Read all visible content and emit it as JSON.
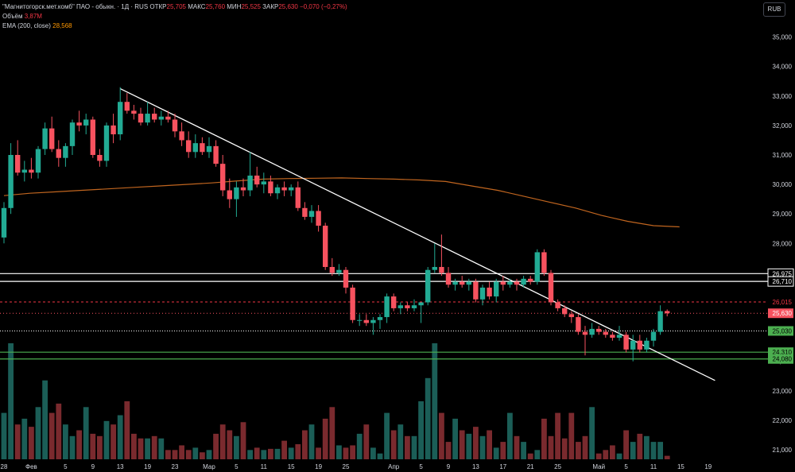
{
  "legend": {
    "symbol": "\"Магнитогорск.мет.комб\" ПАО - обыкн. · 1Д · RUS",
    "open_label": "ОТКР",
    "open": "25,705",
    "high_label": "МАКС",
    "high": "25,760",
    "low_label": "МИН",
    "low": "25,525",
    "close_label": "ЗАКР",
    "close": "25,630",
    "change": "−0,070 (−0,27%)",
    "volume_label": "Объём",
    "volume": "3,87M",
    "ema_label": "EMA (200, close)",
    "ema": "28,568"
  },
  "currency": "RUB",
  "chart_data": {
    "type": "candlestick",
    "y_range": [
      20.8,
      35.5
    ],
    "y_ticks": [
      21,
      22,
      23,
      24,
      25,
      26,
      27,
      28,
      29,
      30,
      31,
      32,
      33,
      34,
      35
    ],
    "y_tick_labels": [
      "21,000",
      "22,000",
      "23,000",
      "24,000",
      "25,000",
      "26,000",
      "27,000",
      "28,000",
      "29,000",
      "30,000",
      "31,000",
      "32,000",
      "33,000",
      "34,000",
      "35,000"
    ],
    "x_labels": [
      {
        "label": "28",
        "at": 0
      },
      {
        "label": "Фев",
        "at": 4
      },
      {
        "label": "5",
        "at": 9
      },
      {
        "label": "9",
        "at": 13
      },
      {
        "label": "13",
        "at": 17
      },
      {
        "label": "19",
        "at": 21
      },
      {
        "label": "23",
        "at": 25
      },
      {
        "label": "Мар",
        "at": 30
      },
      {
        "label": "5",
        "at": 34
      },
      {
        "label": "11",
        "at": 38
      },
      {
        "label": "15",
        "at": 42
      },
      {
        "label": "19",
        "at": 46
      },
      {
        "label": "25",
        "at": 50
      },
      {
        "label": "Апр",
        "at": 57
      },
      {
        "label": "5",
        "at": 61
      },
      {
        "label": "9",
        "at": 65
      },
      {
        "label": "13",
        "at": 69
      },
      {
        "label": "17",
        "at": 73
      },
      {
        "label": "21",
        "at": 77
      },
      {
        "label": "25",
        "at": 81
      },
      {
        "label": "Май",
        "at": 87
      },
      {
        "label": "5",
        "at": 91
      },
      {
        "label": "11",
        "at": 95
      },
      {
        "label": "15",
        "at": 99
      },
      {
        "label": "19",
        "at": 103
      }
    ],
    "candles": [
      {
        "o": 28.2,
        "h": 29.4,
        "l": 28.0,
        "c": 29.2
      },
      {
        "o": 29.2,
        "h": 31.4,
        "l": 29.0,
        "c": 31.0
      },
      {
        "o": 31.0,
        "h": 31.5,
        "l": 30.3,
        "c": 30.4
      },
      {
        "o": 30.4,
        "h": 30.8,
        "l": 30.1,
        "c": 30.5
      },
      {
        "o": 30.5,
        "h": 30.9,
        "l": 30.2,
        "c": 30.4
      },
      {
        "o": 30.4,
        "h": 31.3,
        "l": 30.2,
        "c": 31.2
      },
      {
        "o": 31.2,
        "h": 32.1,
        "l": 31.0,
        "c": 31.9
      },
      {
        "o": 31.9,
        "h": 32.3,
        "l": 31.1,
        "c": 31.2
      },
      {
        "o": 31.2,
        "h": 31.5,
        "l": 30.6,
        "c": 30.9
      },
      {
        "o": 30.9,
        "h": 31.4,
        "l": 30.6,
        "c": 31.3
      },
      {
        "o": 31.3,
        "h": 32.2,
        "l": 31.0,
        "c": 32.1
      },
      {
        "o": 32.1,
        "h": 32.5,
        "l": 31.8,
        "c": 32.0
      },
      {
        "o": 32.0,
        "h": 32.4,
        "l": 31.7,
        "c": 32.2
      },
      {
        "o": 32.2,
        "h": 32.3,
        "l": 30.9,
        "c": 31.0
      },
      {
        "o": 31.0,
        "h": 31.2,
        "l": 30.6,
        "c": 30.8
      },
      {
        "o": 30.8,
        "h": 32.1,
        "l": 30.6,
        "c": 32.0
      },
      {
        "o": 32.0,
        "h": 32.4,
        "l": 31.4,
        "c": 31.7
      },
      {
        "o": 31.7,
        "h": 33.3,
        "l": 31.5,
        "c": 32.8
      },
      {
        "o": 32.8,
        "h": 33.1,
        "l": 32.4,
        "c": 32.5
      },
      {
        "o": 32.5,
        "h": 32.7,
        "l": 32.2,
        "c": 32.4
      },
      {
        "o": 32.4,
        "h": 32.6,
        "l": 32.0,
        "c": 32.1
      },
      {
        "o": 32.1,
        "h": 32.8,
        "l": 32.0,
        "c": 32.4
      },
      {
        "o": 32.4,
        "h": 32.6,
        "l": 32.1,
        "c": 32.2
      },
      {
        "o": 32.2,
        "h": 32.5,
        "l": 32.0,
        "c": 32.3
      },
      {
        "o": 32.3,
        "h": 32.5,
        "l": 32.1,
        "c": 32.2
      },
      {
        "o": 32.2,
        "h": 32.4,
        "l": 31.6,
        "c": 31.8
      },
      {
        "o": 31.8,
        "h": 32.1,
        "l": 31.3,
        "c": 31.5
      },
      {
        "o": 31.5,
        "h": 31.8,
        "l": 30.9,
        "c": 31.1
      },
      {
        "o": 31.1,
        "h": 31.7,
        "l": 30.9,
        "c": 31.4
      },
      {
        "o": 31.4,
        "h": 31.6,
        "l": 31.0,
        "c": 31.1
      },
      {
        "o": 31.1,
        "h": 31.6,
        "l": 30.9,
        "c": 31.3
      },
      {
        "o": 31.3,
        "h": 31.5,
        "l": 30.6,
        "c": 30.7
      },
      {
        "o": 30.7,
        "h": 31.0,
        "l": 29.6,
        "c": 29.8
      },
      {
        "o": 29.8,
        "h": 30.2,
        "l": 29.2,
        "c": 29.5
      },
      {
        "o": 29.5,
        "h": 30.1,
        "l": 28.9,
        "c": 29.9
      },
      {
        "o": 29.9,
        "h": 30.2,
        "l": 29.6,
        "c": 29.8
      },
      {
        "o": 29.8,
        "h": 31.1,
        "l": 29.6,
        "c": 30.3
      },
      {
        "o": 30.3,
        "h": 30.6,
        "l": 29.9,
        "c": 30.0
      },
      {
        "o": 30.0,
        "h": 30.4,
        "l": 29.7,
        "c": 30.1
      },
      {
        "o": 30.1,
        "h": 30.3,
        "l": 29.6,
        "c": 29.7
      },
      {
        "o": 29.7,
        "h": 30.0,
        "l": 29.5,
        "c": 29.9
      },
      {
        "o": 29.9,
        "h": 30.1,
        "l": 29.6,
        "c": 29.8
      },
      {
        "o": 29.8,
        "h": 30.0,
        "l": 29.6,
        "c": 29.9
      },
      {
        "o": 29.9,
        "h": 30.1,
        "l": 29.1,
        "c": 29.2
      },
      {
        "o": 29.2,
        "h": 29.4,
        "l": 28.8,
        "c": 28.9
      },
      {
        "o": 28.9,
        "h": 29.3,
        "l": 28.7,
        "c": 29.1
      },
      {
        "o": 29.1,
        "h": 29.3,
        "l": 28.4,
        "c": 28.6
      },
      {
        "o": 28.6,
        "h": 28.7,
        "l": 27.1,
        "c": 27.2
      },
      {
        "o": 27.2,
        "h": 27.5,
        "l": 26.9,
        "c": 27.0
      },
      {
        "o": 27.0,
        "h": 27.3,
        "l": 26.9,
        "c": 27.1
      },
      {
        "o": 27.1,
        "h": 27.2,
        "l": 26.3,
        "c": 26.5
      },
      {
        "o": 26.5,
        "h": 26.6,
        "l": 25.3,
        "c": 25.4
      },
      {
        "o": 25.4,
        "h": 25.6,
        "l": 25.2,
        "c": 25.4
      },
      {
        "o": 25.4,
        "h": 25.6,
        "l": 25.2,
        "c": 25.3
      },
      {
        "o": 25.3,
        "h": 25.5,
        "l": 24.9,
        "c": 25.4
      },
      {
        "o": 25.4,
        "h": 25.6,
        "l": 25.1,
        "c": 25.5
      },
      {
        "o": 25.5,
        "h": 26.3,
        "l": 25.3,
        "c": 26.2
      },
      {
        "o": 26.2,
        "h": 26.3,
        "l": 25.7,
        "c": 25.8
      },
      {
        "o": 25.8,
        "h": 26.0,
        "l": 25.6,
        "c": 25.9
      },
      {
        "o": 25.9,
        "h": 26.0,
        "l": 25.7,
        "c": 25.8
      },
      {
        "o": 25.8,
        "h": 26.1,
        "l": 25.7,
        "c": 25.9
      },
      {
        "o": 25.9,
        "h": 26.0,
        "l": 25.3,
        "c": 26.0
      },
      {
        "o": 26.0,
        "h": 27.2,
        "l": 25.9,
        "c": 27.1
      },
      {
        "o": 27.1,
        "h": 28.0,
        "l": 27.0,
        "c": 27.2
      },
      {
        "o": 27.2,
        "h": 28.3,
        "l": 26.9,
        "c": 27.0
      },
      {
        "o": 27.0,
        "h": 27.2,
        "l": 26.5,
        "c": 26.6
      },
      {
        "o": 26.6,
        "h": 26.8,
        "l": 26.4,
        "c": 26.7
      },
      {
        "o": 26.7,
        "h": 26.9,
        "l": 26.5,
        "c": 26.6
      },
      {
        "o": 26.6,
        "h": 26.8,
        "l": 26.4,
        "c": 26.7
      },
      {
        "o": 26.7,
        "h": 26.8,
        "l": 26.0,
        "c": 26.1
      },
      {
        "o": 26.1,
        "h": 26.6,
        "l": 25.9,
        "c": 26.5
      },
      {
        "o": 26.5,
        "h": 26.7,
        "l": 26.1,
        "c": 26.2
      },
      {
        "o": 26.2,
        "h": 26.8,
        "l": 26.0,
        "c": 26.7
      },
      {
        "o": 26.7,
        "h": 26.9,
        "l": 26.4,
        "c": 26.6
      },
      {
        "o": 26.6,
        "h": 26.8,
        "l": 26.5,
        "c": 26.7
      },
      {
        "o": 26.7,
        "h": 26.8,
        "l": 26.4,
        "c": 26.6
      },
      {
        "o": 26.6,
        "h": 26.9,
        "l": 26.5,
        "c": 26.8
      },
      {
        "o": 26.8,
        "h": 26.9,
        "l": 26.6,
        "c": 26.7
      },
      {
        "o": 26.7,
        "h": 27.8,
        "l": 26.6,
        "c": 27.7
      },
      {
        "o": 27.7,
        "h": 27.8,
        "l": 26.9,
        "c": 27.0
      },
      {
        "o": 27.0,
        "h": 27.1,
        "l": 25.9,
        "c": 26.0
      },
      {
        "o": 26.0,
        "h": 26.1,
        "l": 25.7,
        "c": 25.8
      },
      {
        "o": 25.8,
        "h": 25.9,
        "l": 25.5,
        "c": 25.6
      },
      {
        "o": 25.6,
        "h": 25.7,
        "l": 25.3,
        "c": 25.5
      },
      {
        "o": 25.5,
        "h": 25.6,
        "l": 24.9,
        "c": 25.0
      },
      {
        "o": 25.0,
        "h": 25.2,
        "l": 24.2,
        "c": 24.9
      },
      {
        "o": 24.9,
        "h": 25.3,
        "l": 24.8,
        "c": 25.1
      },
      {
        "o": 25.1,
        "h": 25.2,
        "l": 24.9,
        "c": 25.0
      },
      {
        "o": 25.0,
        "h": 25.1,
        "l": 24.8,
        "c": 24.9
      },
      {
        "o": 24.9,
        "h": 25.0,
        "l": 24.7,
        "c": 24.8
      },
      {
        "o": 24.8,
        "h": 25.2,
        "l": 24.7,
        "c": 24.9
      },
      {
        "o": 24.9,
        "h": 25.0,
        "l": 24.3,
        "c": 24.4
      },
      {
        "o": 24.4,
        "h": 24.9,
        "l": 24.0,
        "c": 24.7
      },
      {
        "o": 24.7,
        "h": 24.9,
        "l": 24.3,
        "c": 24.4
      },
      {
        "o": 24.4,
        "h": 24.8,
        "l": 24.3,
        "c": 24.7
      },
      {
        "o": 24.7,
        "h": 25.1,
        "l": 24.5,
        "c": 25.0
      },
      {
        "o": 25.0,
        "h": 25.9,
        "l": 24.9,
        "c": 25.7
      },
      {
        "o": 25.705,
        "h": 25.76,
        "l": 25.525,
        "c": 25.63
      }
    ],
    "volume_scale_max": 100,
    "volume": [
      40,
      100,
      30,
      35,
      28,
      45,
      68,
      40,
      48,
      30,
      20,
      25,
      45,
      22,
      20,
      33,
      30,
      38,
      50,
      22,
      18,
      18,
      20,
      18,
      8,
      8,
      12,
      8,
      10,
      6,
      8,
      22,
      30,
      25,
      20,
      32,
      8,
      10,
      8,
      9,
      9,
      16,
      10,
      13,
      25,
      30,
      10,
      35,
      45,
      12,
      10,
      12,
      22,
      30,
      10,
      5,
      40,
      25,
      30,
      20,
      20,
      50,
      70,
      100,
      40,
      15,
      35,
      25,
      22,
      28,
      20,
      25,
      10,
      15,
      40,
      20,
      15,
      5,
      8,
      35,
      20,
      40,
      18,
      40,
      15,
      20,
      45,
      5,
      8,
      12,
      5,
      25,
      15,
      22,
      20,
      15,
      15,
      3
    ],
    "ema200": [
      29.62,
      29.7,
      29.75,
      29.8,
      29.85,
      29.9,
      29.95,
      30.0,
      30.05,
      30.12,
      30.18,
      30.2,
      30.21,
      30.22,
      30.2,
      30.18,
      30.15,
      30.1,
      29.95,
      29.8,
      29.6,
      29.4,
      29.2,
      28.95,
      28.75,
      28.6,
      28.56
    ],
    "ema200_start_index": 0,
    "ema200_step": 3.8,
    "trendline": {
      "from": {
        "i": 17,
        "v": 33.25
      },
      "to": {
        "i": 104,
        "v": 23.35
      }
    },
    "horizontal_lines": [
      {
        "value": 26.975,
        "label": "26,975",
        "style": "solid-white"
      },
      {
        "value": 26.71,
        "label": "26,710",
        "style": "solid-white"
      },
      {
        "value": 24.31,
        "label": "24,310",
        "style": "solid-green"
      },
      {
        "value": 24.08,
        "label": "24,080",
        "style": "solid-green"
      }
    ],
    "price_markers": [
      {
        "value": 26.015,
        "label": "26,015",
        "kind": "high-line"
      },
      {
        "value": 25.63,
        "label": "25,630",
        "kind": "last-price"
      },
      {
        "value": 25.03,
        "label": "25,030",
        "kind": "low-line"
      }
    ],
    "dotted_line_value": 25.03,
    "colors": {
      "up": "#22ab94",
      "down": "#f7525f",
      "vol_up": "#1b5e57",
      "vol_down": "#7a2a2e",
      "ema": "#c0651f",
      "trend": "#ffffff",
      "green_line": "#4caf50",
      "marker_red": "#f23645",
      "marker_last": "#f7525f",
      "marker_green": "#4caf50"
    }
  }
}
